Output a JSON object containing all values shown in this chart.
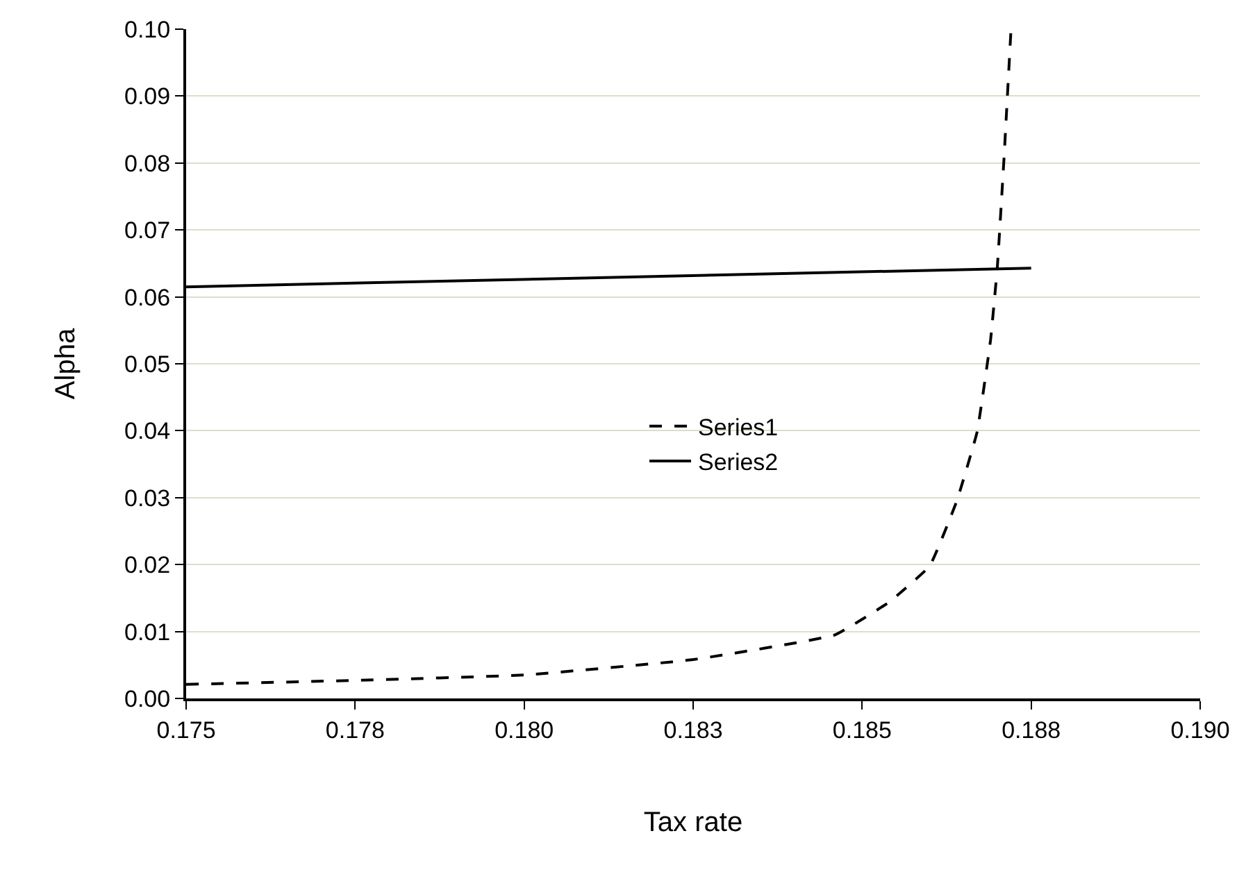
{
  "chart_data": {
    "type": "line",
    "xlabel": "Tax rate",
    "ylabel": "Alpha",
    "xlim": [
      0.175,
      0.19
    ],
    "xticks": [
      {
        "value": 0.175,
        "label": "0.175"
      },
      {
        "value": 0.1775,
        "label": "0.178"
      },
      {
        "value": 0.18,
        "label": "0.180"
      },
      {
        "value": 0.1825,
        "label": "0.183"
      },
      {
        "value": 0.185,
        "label": "0.185"
      },
      {
        "value": 0.1875,
        "label": "0.188"
      },
      {
        "value": 0.19,
        "label": "0.190"
      }
    ],
    "ylim": [
      0,
      0.1
    ],
    "yticks": [
      {
        "value": 0,
        "label": "0.00"
      },
      {
        "value": 0.01,
        "label": "0.01"
      },
      {
        "value": 0.02,
        "label": "0.02"
      },
      {
        "value": 0.03,
        "label": "0.03"
      },
      {
        "value": 0.04,
        "label": "0.04"
      },
      {
        "value": 0.05,
        "label": "0.05"
      },
      {
        "value": 0.06,
        "label": "0.06"
      },
      {
        "value": 0.07,
        "label": "0.07"
      },
      {
        "value": 0.08,
        "label": "0.08"
      },
      {
        "value": 0.09,
        "label": "0.09"
      },
      {
        "value": 0.1,
        "label": "0.10"
      }
    ],
    "grid": "y",
    "legend": "center",
    "marker": "none",
    "series": [
      {
        "name": "Series1",
        "color": "#000000",
        "line_style": "dashed",
        "x": [
          0.175,
          0.1775,
          0.18,
          0.1825,
          0.1846,
          0.1854,
          0.186,
          0.1864,
          0.1867,
          0.1869,
          0.187,
          0.1871,
          0.1872
        ],
        "values": [
          0.0021,
          0.0027,
          0.0035,
          0.0058,
          0.0095,
          0.0144,
          0.0198,
          0.0295,
          0.0398,
          0.0536,
          0.0645,
          0.081,
          0.0996
        ]
      },
      {
        "name": "Series2",
        "color": "#000000",
        "line_style": "solid",
        "x": [
          0.175,
          0.1875
        ],
        "values": [
          0.0615,
          0.0643
        ]
      }
    ]
  }
}
